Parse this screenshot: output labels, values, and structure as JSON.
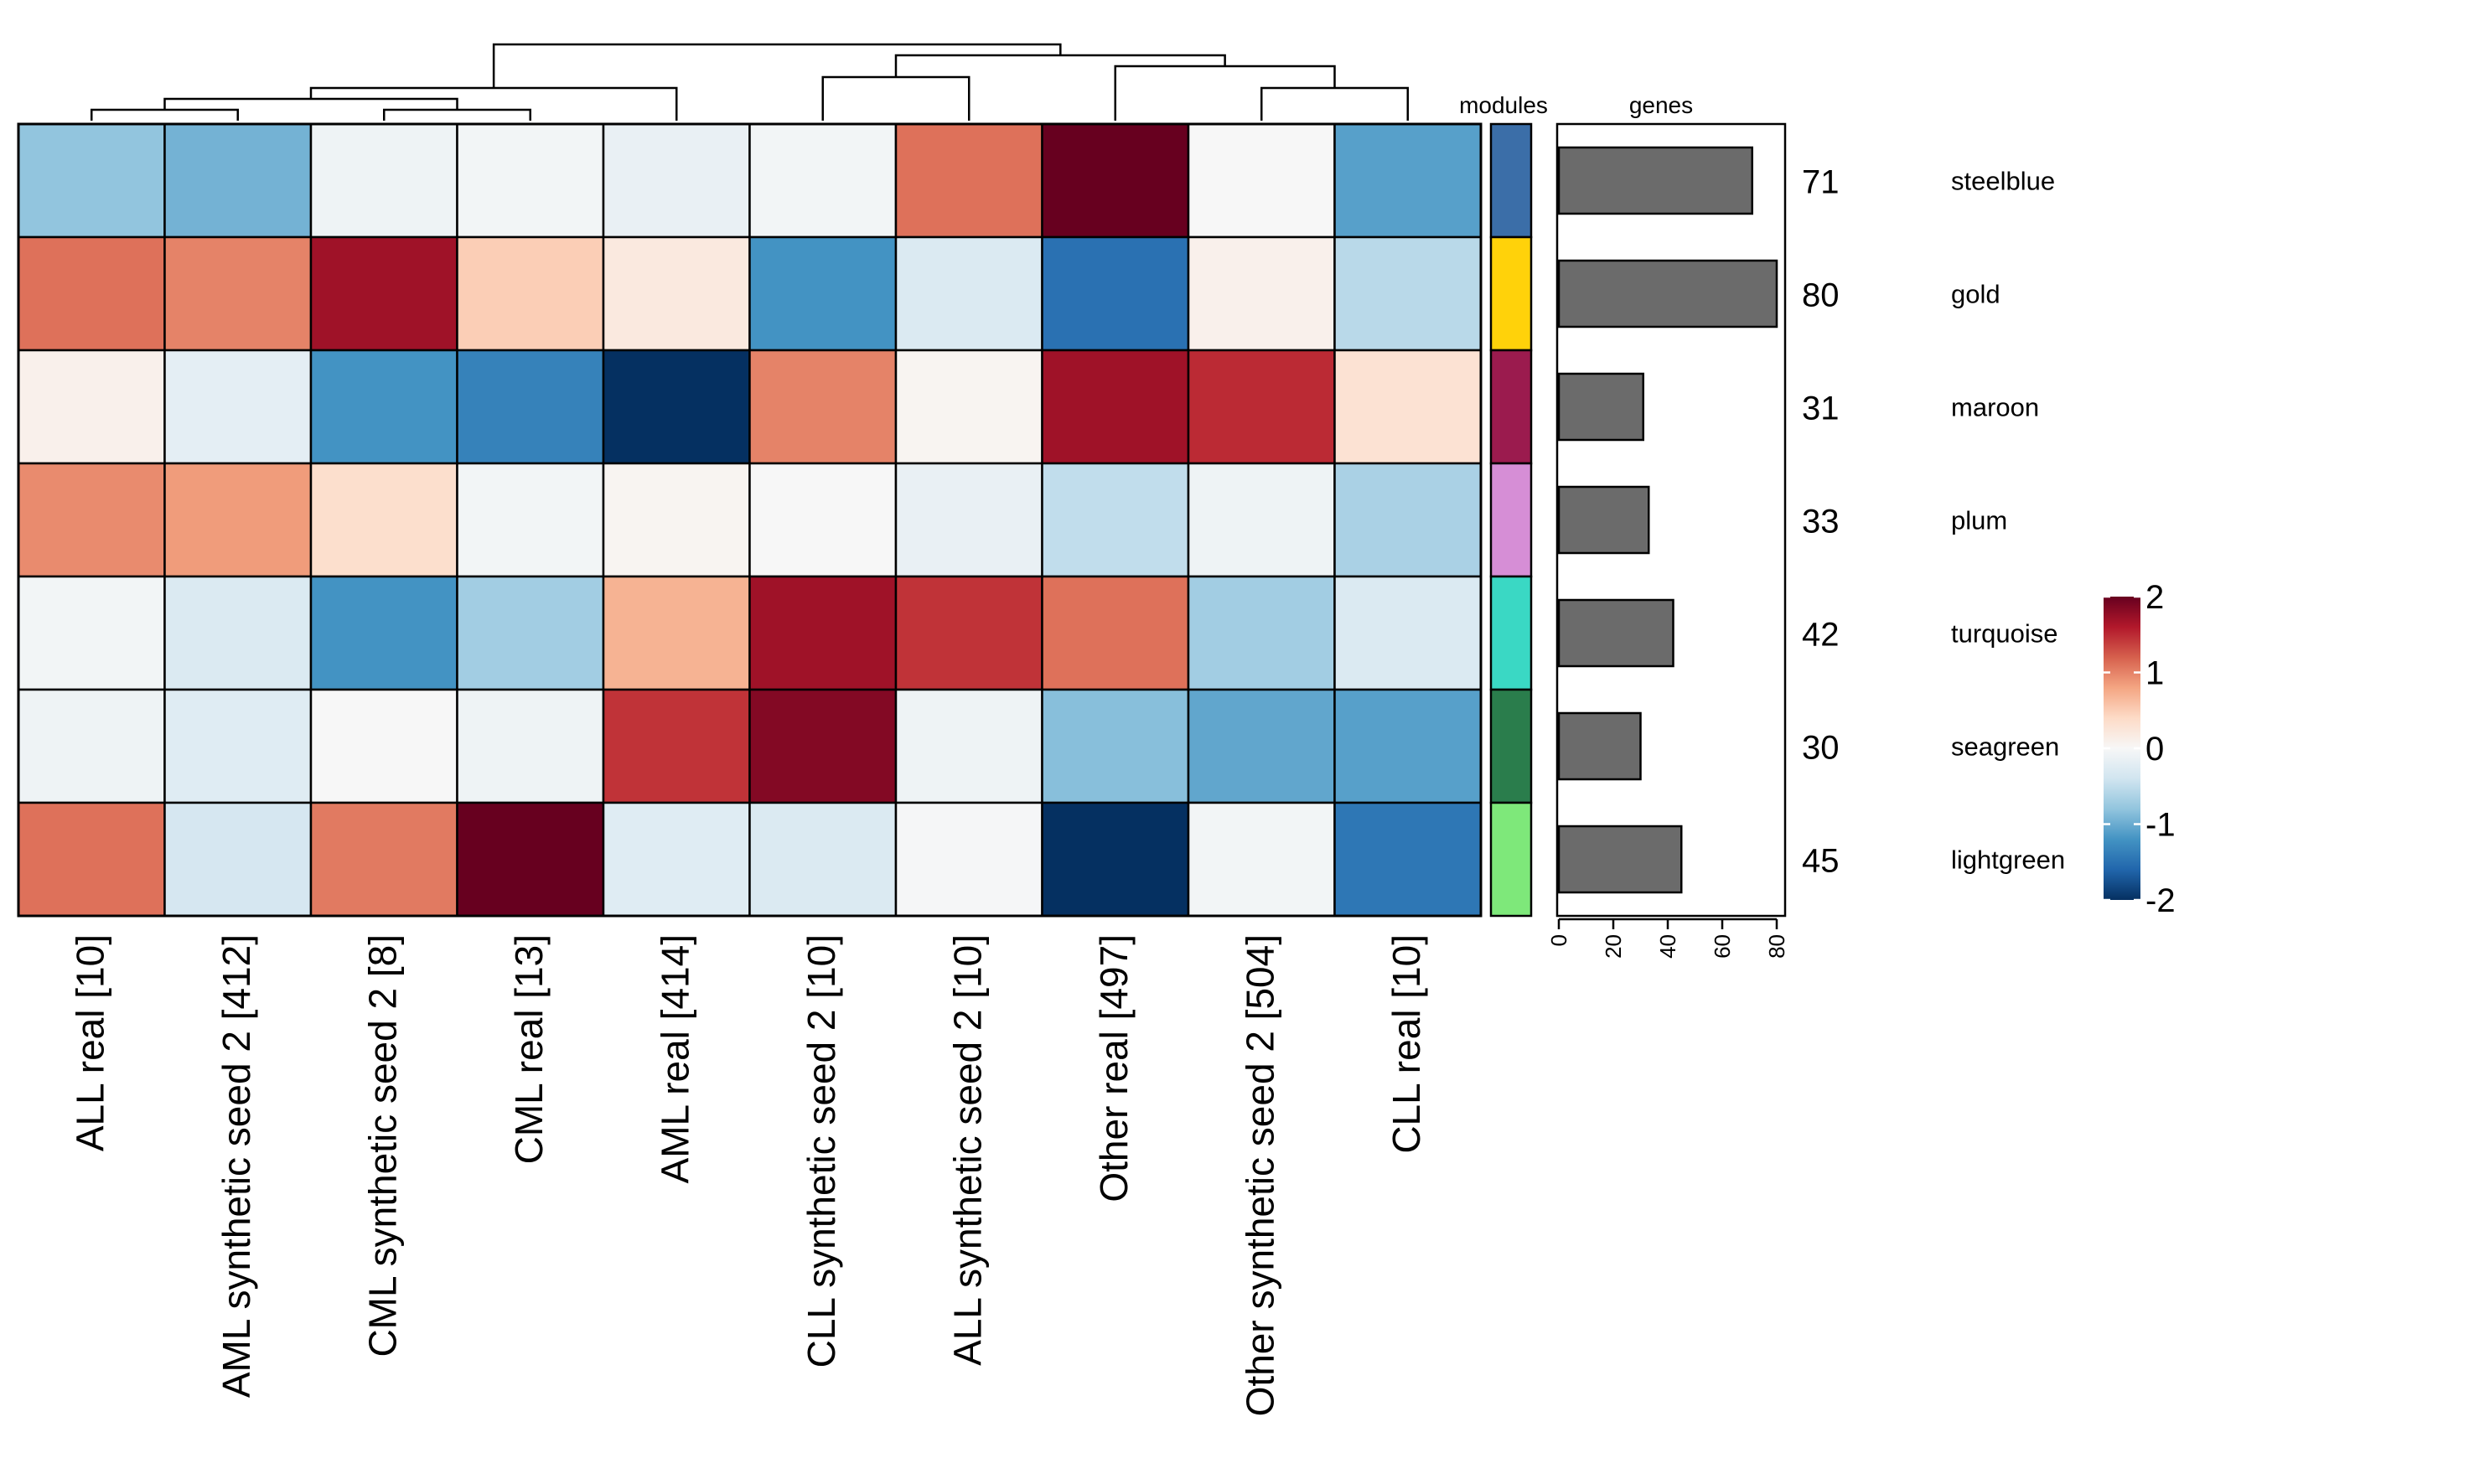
{
  "chart_data": {
    "type": "heatmap",
    "title": "",
    "columns": [
      "ALL real  [10]",
      "AML synthetic seed 2  [412]",
      "CML synthetic seed 2  [8]",
      "CML real  [13]",
      "AML real  [414]",
      "CLL synthetic seed 2  [10]",
      "ALL synthetic seed 2  [10]",
      "Other real  [497]",
      "Other synthetic seed 2  [504]",
      "CLL real  [10]"
    ],
    "rows": [
      "steelblue",
      "gold",
      "maroon",
      "plum",
      "turquoise",
      "seagreen",
      "lightgreen"
    ],
    "values": [
      [
        -0.8,
        -0.95,
        -0.1,
        -0.05,
        -0.15,
        -0.05,
        1.1,
        2.2,
        0.0,
        -1.1
      ],
      [
        1.1,
        1.0,
        1.7,
        0.5,
        0.2,
        -1.2,
        -0.3,
        -1.5,
        0.1,
        -0.55
      ],
      [
        0.1,
        -0.2,
        -1.2,
        -1.35,
        -2.0,
        1.0,
        0.05,
        1.7,
        1.5,
        0.3
      ],
      [
        0.95,
        0.85,
        0.35,
        -0.05,
        0.05,
        0.0,
        -0.15,
        -0.5,
        -0.1,
        -0.65
      ],
      [
        -0.05,
        -0.3,
        -1.2,
        -0.7,
        0.7,
        1.7,
        1.45,
        1.1,
        -0.7,
        -0.3
      ],
      [
        -0.1,
        -0.25,
        0.0,
        -0.1,
        1.45,
        1.85,
        -0.1,
        -0.85,
        -1.05,
        -1.1
      ],
      [
        1.1,
        -0.35,
        1.05,
        2.45,
        -0.25,
        -0.3,
        -0.02,
        -2.1,
        -0.05,
        -1.45
      ]
    ],
    "color_scale": {
      "min": -2,
      "max": 2,
      "ticks": [
        "2",
        "1",
        "0",
        "-1",
        "-2"
      ],
      "tick_values": [
        2,
        1,
        0,
        -1,
        -2
      ],
      "stops": [
        "#053061",
        "#2166ac",
        "#4393c3",
        "#92c5de",
        "#d1e5f0",
        "#f7f7f7",
        "#fddbc7",
        "#f4a582",
        "#d6604d",
        "#b2182b",
        "#67001f"
      ]
    },
    "modules_header": "modules",
    "module_colors": [
      "#3b6ea8",
      "#ffd20a",
      "#9b1b4e",
      "#d68ed6",
      "#3ad8c4",
      "#2a7d4c",
      "#7ee87a"
    ],
    "genes_header": "genes",
    "genes": [
      71,
      80,
      31,
      33,
      42,
      30,
      45
    ],
    "gene_labels": [
      "71",
      "80",
      "31",
      "33",
      "42",
      "30",
      "45"
    ],
    "genes_axis": {
      "min": 0,
      "max": 80,
      "ticks": [
        0,
        20,
        40,
        60,
        80
      ],
      "tick_labels": [
        "0",
        "20",
        "40",
        "60",
        "80"
      ]
    },
    "bar_color": "#6b6b6b",
    "dendrogram": {
      "merges": [
        [
          0,
          1,
          1
        ],
        [
          2,
          3,
          1
        ],
        [
          -1,
          -2,
          2
        ],
        [
          -3,
          4,
          3
        ],
        [
          8,
          9,
          3
        ],
        [
          5,
          6,
          4
        ],
        [
          7,
          -5,
          5
        ],
        [
          -6,
          -7,
          6
        ],
        [
          -4,
          -8,
          7
        ]
      ]
    }
  }
}
